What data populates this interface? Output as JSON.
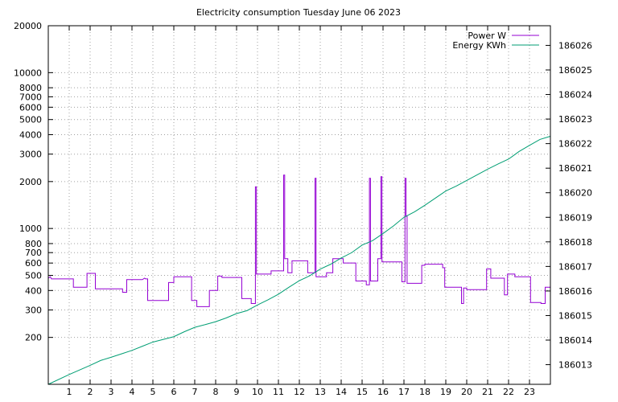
{
  "chart_data": {
    "type": "line",
    "title": "Electricity consumption Tuesday June 06 2023",
    "x_ticks": [
      "1",
      "2",
      "3",
      "4",
      "5",
      "6",
      "7",
      "8",
      "9",
      "10",
      "11",
      "12",
      "13",
      "14",
      "15",
      "16",
      "17",
      "18",
      "19",
      "20",
      "21",
      "22",
      "23"
    ],
    "xlim": [
      0,
      24
    ],
    "y_left": {
      "scale": "log",
      "ylim": [
        100,
        20000
      ],
      "ticks": [
        200,
        300,
        400,
        500,
        600,
        700,
        800,
        1000,
        2000,
        3000,
        4000,
        5000,
        6000,
        7000,
        8000,
        10000,
        20000
      ]
    },
    "y_right": {
      "scale": "linear",
      "ylim": [
        186012.2,
        186026.8
      ],
      "ticks": [
        186013,
        186014,
        186015,
        186016,
        186017,
        186018,
        186019,
        186020,
        186021,
        186022,
        186023,
        186024,
        186025,
        186026
      ]
    },
    "grid": true,
    "legend_position": "top-right",
    "series": [
      {
        "name": "Power W",
        "color": "#9400d3",
        "axis": "left",
        "points": [
          [
            0,
            480
          ],
          [
            0.1,
            490
          ],
          [
            0.15,
            475
          ],
          [
            1.2,
            475
          ],
          [
            1.2,
            420
          ],
          [
            1.85,
            420
          ],
          [
            1.85,
            515
          ],
          [
            2.25,
            515
          ],
          [
            2.25,
            410
          ],
          [
            3.55,
            410
          ],
          [
            3.55,
            390
          ],
          [
            3.75,
            390
          ],
          [
            3.75,
            470
          ],
          [
            4.5,
            470
          ],
          [
            4.6,
            480
          ],
          [
            4.65,
            475
          ],
          [
            4.75,
            475
          ],
          [
            4.75,
            345
          ],
          [
            5.75,
            345
          ],
          [
            5.75,
            450
          ],
          [
            6.0,
            450
          ],
          [
            6.0,
            490
          ],
          [
            6.85,
            490
          ],
          [
            6.85,
            345
          ],
          [
            7.1,
            345
          ],
          [
            7.1,
            315
          ],
          [
            7.7,
            315
          ],
          [
            7.7,
            400
          ],
          [
            8.1,
            400
          ],
          [
            8.1,
            495
          ],
          [
            8.3,
            495
          ],
          [
            8.3,
            485
          ],
          [
            9.25,
            485
          ],
          [
            9.25,
            355
          ],
          [
            9.7,
            355
          ],
          [
            9.7,
            330
          ],
          [
            9.9,
            330
          ],
          [
            9.9,
            1850
          ],
          [
            9.95,
            1850
          ],
          [
            9.95,
            510
          ],
          [
            10.65,
            510
          ],
          [
            10.65,
            535
          ],
          [
            11.25,
            535
          ],
          [
            11.25,
            2200
          ],
          [
            11.3,
            2200
          ],
          [
            11.3,
            640
          ],
          [
            11.45,
            640
          ],
          [
            11.45,
            520
          ],
          [
            11.65,
            520
          ],
          [
            11.65,
            620
          ],
          [
            12.4,
            620
          ],
          [
            12.4,
            520
          ],
          [
            12.75,
            520
          ],
          [
            12.75,
            2100
          ],
          [
            12.8,
            2100
          ],
          [
            12.8,
            490
          ],
          [
            13.3,
            490
          ],
          [
            13.3,
            520
          ],
          [
            13.6,
            520
          ],
          [
            13.6,
            640
          ],
          [
            14.1,
            640
          ],
          [
            14.1,
            600
          ],
          [
            14.7,
            600
          ],
          [
            14.7,
            460
          ],
          [
            15.2,
            460
          ],
          [
            15.2,
            435
          ],
          [
            15.35,
            435
          ],
          [
            15.35,
            2100
          ],
          [
            15.4,
            2100
          ],
          [
            15.4,
            460
          ],
          [
            15.75,
            460
          ],
          [
            15.75,
            640
          ],
          [
            15.9,
            640
          ],
          [
            15.9,
            2150
          ],
          [
            15.95,
            2150
          ],
          [
            15.95,
            610
          ],
          [
            16.9,
            610
          ],
          [
            16.9,
            455
          ],
          [
            17.05,
            455
          ],
          [
            17.05,
            2100
          ],
          [
            17.1,
            2100
          ],
          [
            17.1,
            1200
          ],
          [
            17.15,
            1200
          ],
          [
            17.15,
            445
          ],
          [
            17.85,
            445
          ],
          [
            17.85,
            580
          ],
          [
            18.0,
            580
          ],
          [
            18.0,
            590
          ],
          [
            18.85,
            590
          ],
          [
            18.85,
            560
          ],
          [
            18.95,
            560
          ],
          [
            18.95,
            420
          ],
          [
            19.75,
            420
          ],
          [
            19.75,
            330
          ],
          [
            19.85,
            330
          ],
          [
            19.85,
            415
          ],
          [
            20.0,
            415
          ],
          [
            20.0,
            405
          ],
          [
            20.95,
            405
          ],
          [
            20.95,
            550
          ],
          [
            21.15,
            550
          ],
          [
            21.15,
            480
          ],
          [
            21.8,
            480
          ],
          [
            21.8,
            375
          ],
          [
            21.95,
            375
          ],
          [
            21.95,
            510
          ],
          [
            22.3,
            510
          ],
          [
            22.3,
            490
          ],
          [
            23.05,
            490
          ],
          [
            23.05,
            335
          ],
          [
            23.55,
            335
          ],
          [
            23.55,
            330
          ],
          [
            23.75,
            330
          ],
          [
            23.75,
            420
          ],
          [
            24.0,
            420
          ]
        ]
      },
      {
        "name": "Energy KWh",
        "color": "#009e73",
        "axis": "right",
        "points": [
          [
            0,
            186012.2
          ],
          [
            1,
            186012.6
          ],
          [
            2,
            186012.97
          ],
          [
            2.5,
            186013.17
          ],
          [
            3.0,
            186013.3
          ],
          [
            3.5,
            186013.44
          ],
          [
            4.0,
            186013.58
          ],
          [
            4.5,
            186013.75
          ],
          [
            5.0,
            186013.92
          ],
          [
            5.5,
            186014.03
          ],
          [
            6.0,
            186014.14
          ],
          [
            6.5,
            186014.34
          ],
          [
            7.0,
            186014.52
          ],
          [
            7.5,
            186014.63
          ],
          [
            8.0,
            186014.75
          ],
          [
            8.5,
            186014.9
          ],
          [
            9.0,
            186015.08
          ],
          [
            9.5,
            186015.2
          ],
          [
            10.0,
            186015.43
          ],
          [
            10.5,
            186015.64
          ],
          [
            11.0,
            186015.87
          ],
          [
            11.5,
            186016.15
          ],
          [
            12.0,
            186016.42
          ],
          [
            12.5,
            186016.62
          ],
          [
            13.0,
            186016.89
          ],
          [
            13.5,
            186017.09
          ],
          [
            14.0,
            186017.34
          ],
          [
            14.5,
            186017.56
          ],
          [
            15.0,
            186017.87
          ],
          [
            15.5,
            186018.05
          ],
          [
            16.0,
            186018.34
          ],
          [
            16.5,
            186018.65
          ],
          [
            17.0,
            186019.0
          ],
          [
            17.5,
            186019.22
          ],
          [
            18.0,
            186019.49
          ],
          [
            18.5,
            186019.78
          ],
          [
            19.0,
            186020.07
          ],
          [
            19.5,
            186020.27
          ],
          [
            20.0,
            186020.5
          ],
          [
            20.5,
            186020.73
          ],
          [
            21.0,
            186020.96
          ],
          [
            21.5,
            186021.17
          ],
          [
            22.0,
            186021.37
          ],
          [
            22.5,
            186021.68
          ],
          [
            23.0,
            186021.93
          ],
          [
            23.5,
            186022.17
          ],
          [
            24.0,
            186022.3
          ]
        ]
      }
    ]
  }
}
